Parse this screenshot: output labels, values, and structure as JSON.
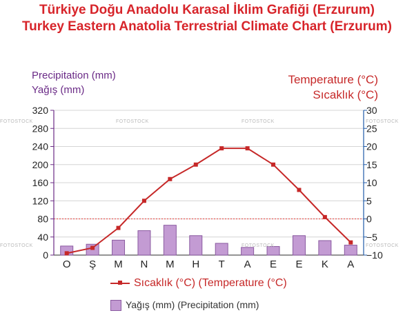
{
  "titles": {
    "line1": "Türkiye Doğu Anadolu Karasal İklim Grafiği (Erzurum)",
    "line2": "Turkey Eastern Anatolia Terrestrial Climate Chart (Erzurum)"
  },
  "axes": {
    "left_title_1": "Precipitation (mm)",
    "left_title_2": "Yağış (mm)",
    "right_title_1": "Temperature (°C)",
    "right_title_2": "Sıcaklık (°C)"
  },
  "watermark": "FOTOSTOCK",
  "legend": {
    "line_label": "Sıcaklık (°C) (Temperature (°C)",
    "bar_label": "Yağış (mm) (Precipitation (mm)"
  },
  "colors": {
    "line": "#c62828",
    "bar_fill": "#c39bd3",
    "bar_stroke": "#8a5aa0",
    "left_axis": "#6a2a86",
    "right_axis": "#1f5aa8",
    "zero_line": "#e53935"
  },
  "chart_data": {
    "type": "bar+line",
    "categories": [
      "O",
      "Ş",
      "M",
      "N",
      "M",
      "H",
      "T",
      "A",
      "E",
      "E",
      "K",
      "A"
    ],
    "series": [
      {
        "name": "Yağış (mm) (Precipitation (mm)",
        "type": "bar",
        "axis": "left",
        "values": [
          20,
          24,
          33,
          54,
          66,
          43,
          26,
          17,
          19,
          43,
          32,
          22
        ]
      },
      {
        "name": "Sıcaklık (°C) (Temperature (°C)",
        "type": "line",
        "axis": "right",
        "values": [
          -9.5,
          -8,
          -2.5,
          5,
          11,
          15,
          19.5,
          19.5,
          15,
          8,
          0.5,
          -6.5
        ]
      }
    ],
    "left_axis": {
      "min": 0,
      "max": 320,
      "ticks": [
        "0",
        "40",
        "80",
        "120",
        "160",
        "200",
        "240",
        "280",
        "320"
      ]
    },
    "right_axis": {
      "min": -10,
      "max": 30,
      "ticks": [
        "−10",
        "−5",
        "0",
        "5",
        "10",
        "15",
        "20",
        "25",
        "30"
      ]
    },
    "grid": true,
    "legend_position": "bottom"
  }
}
